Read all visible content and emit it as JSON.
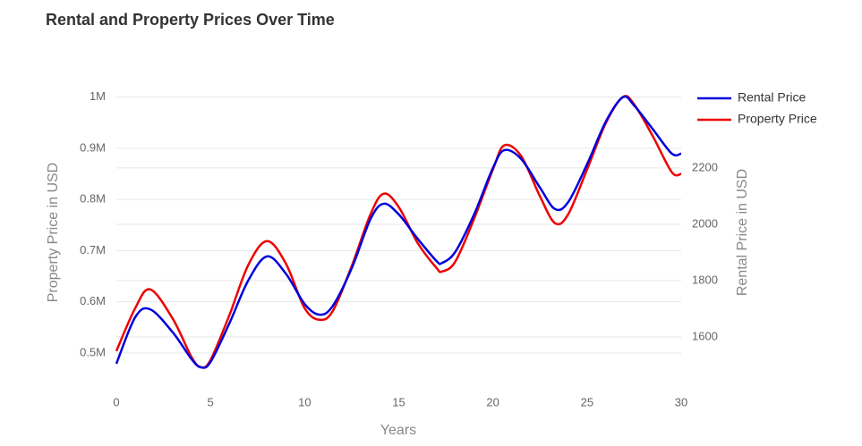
{
  "chart_data": {
    "type": "line",
    "title": "Rental and Property Prices Over Time",
    "x_label": "Years",
    "y_label": "Property Price in USD",
    "y2_label": "Rental Price in USD",
    "x": [
      0,
      1,
      1.8,
      3,
      4,
      4.5,
      5,
      6,
      7,
      8,
      9,
      10,
      10.8,
      11.5,
      12.5,
      13.5,
      14.2,
      15,
      16,
      17,
      17.3,
      18,
      19,
      20,
      20.6,
      21.5,
      22.5,
      23.3,
      24,
      25,
      26,
      26.9,
      27.5,
      28.5,
      29.5,
      30
    ],
    "series": [
      {
        "name": "Rental Price",
        "color": "#0000dd",
        "axis": "y2",
        "values": [
          1505,
          1670,
          1698,
          1616,
          1521,
          1492,
          1511,
          1648,
          1800,
          1886,
          1825,
          1717,
          1679,
          1711,
          1844,
          2019,
          2073,
          2035,
          1949,
          1870,
          1863,
          1902,
          2035,
          2200,
          2263,
          2232,
          2130,
          2054,
          2079,
          2213,
          2365,
          2451,
          2422,
          2337,
          2251,
          2251
        ]
      },
      {
        "name": "Property Price",
        "color": "#ee0000",
        "values": [
          503500,
          587400,
          624100,
          566400,
          491300,
          472000,
          486000,
          573400,
          671300,
          718500,
          674800,
          587400,
          564700,
          582200,
          669600,
          771000,
          811200,
          785000,
          715000,
          666100,
          659100,
          678300,
          762200,
          858400,
          905600,
          884600,
          806000,
          753500,
          771000,
          858400,
          949300,
          1000000,
          986000,
          923000,
          853100,
          849700
        ]
      }
    ],
    "xlim": [
      0,
      30
    ],
    "xticks": [
      0,
      5,
      10,
      15,
      20,
      25,
      30
    ],
    "ylim": [
      470000,
      1015000
    ],
    "yticks": [
      {
        "value": 500000,
        "label": "0.5M"
      },
      {
        "value": 600000,
        "label": "0.6M"
      },
      {
        "value": 700000,
        "label": "0.7M"
      },
      {
        "value": 800000,
        "label": "0.8M"
      },
      {
        "value": 900000,
        "label": "0.9M"
      },
      {
        "value": 1000000,
        "label": "1M"
      }
    ],
    "y2lim": [
      1489,
      2479
    ],
    "y2ticks": [
      1600,
      1800,
      2000,
      2200
    ],
    "grid": true,
    "legend": "top-right"
  }
}
